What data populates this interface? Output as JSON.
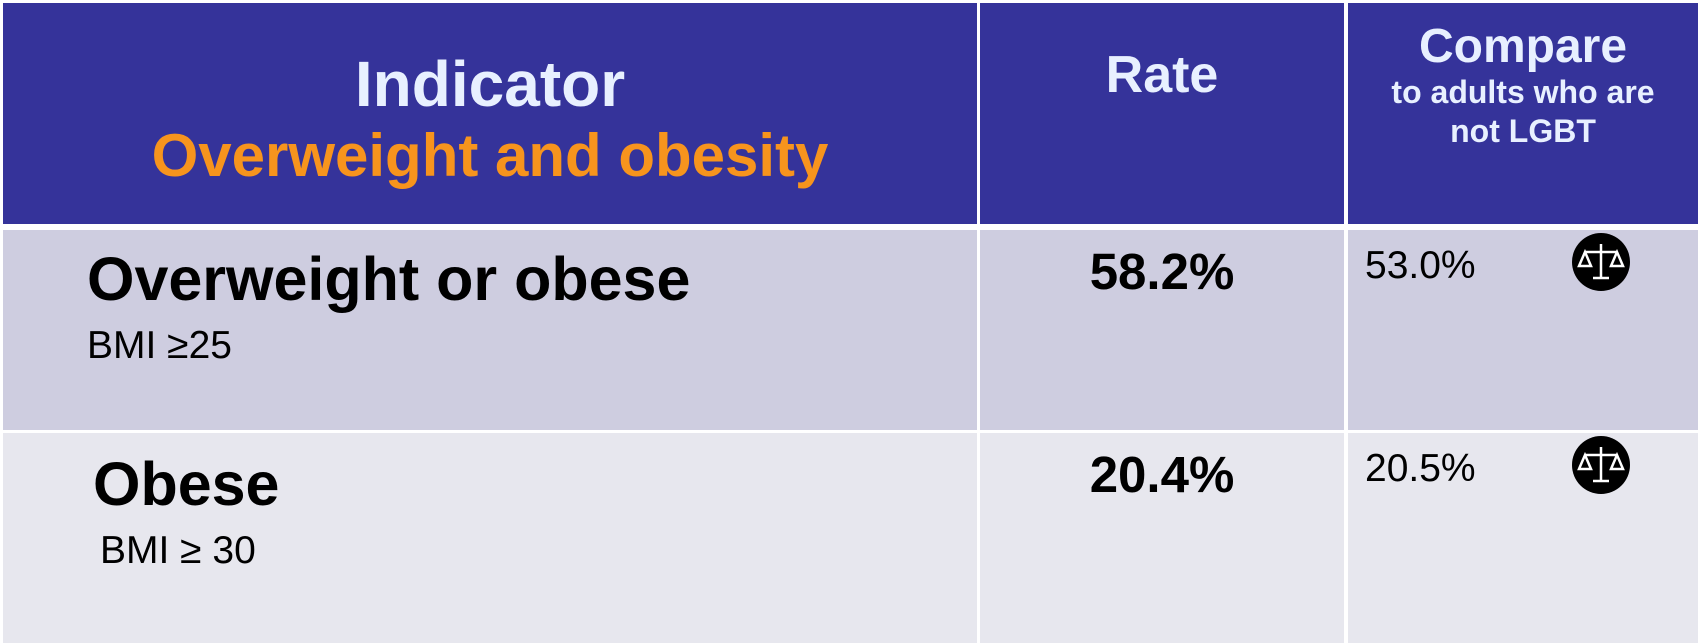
{
  "table": {
    "header": {
      "indicator": "Indicator",
      "indicator_subtitle": "Overweight and obesity",
      "rate": "Rate",
      "compare": "Compare",
      "compare_subtitle": "to adults who are not LGBT"
    },
    "rows": [
      {
        "label": "Overweight or obese",
        "sublabel": "BMI ≥25",
        "rate": "58.2%",
        "compare": "53.0%"
      },
      {
        "label": "Obese",
        "sublabel": "BMI ≥ 30",
        "rate": "20.4%",
        "compare": "20.5%"
      }
    ]
  }
}
